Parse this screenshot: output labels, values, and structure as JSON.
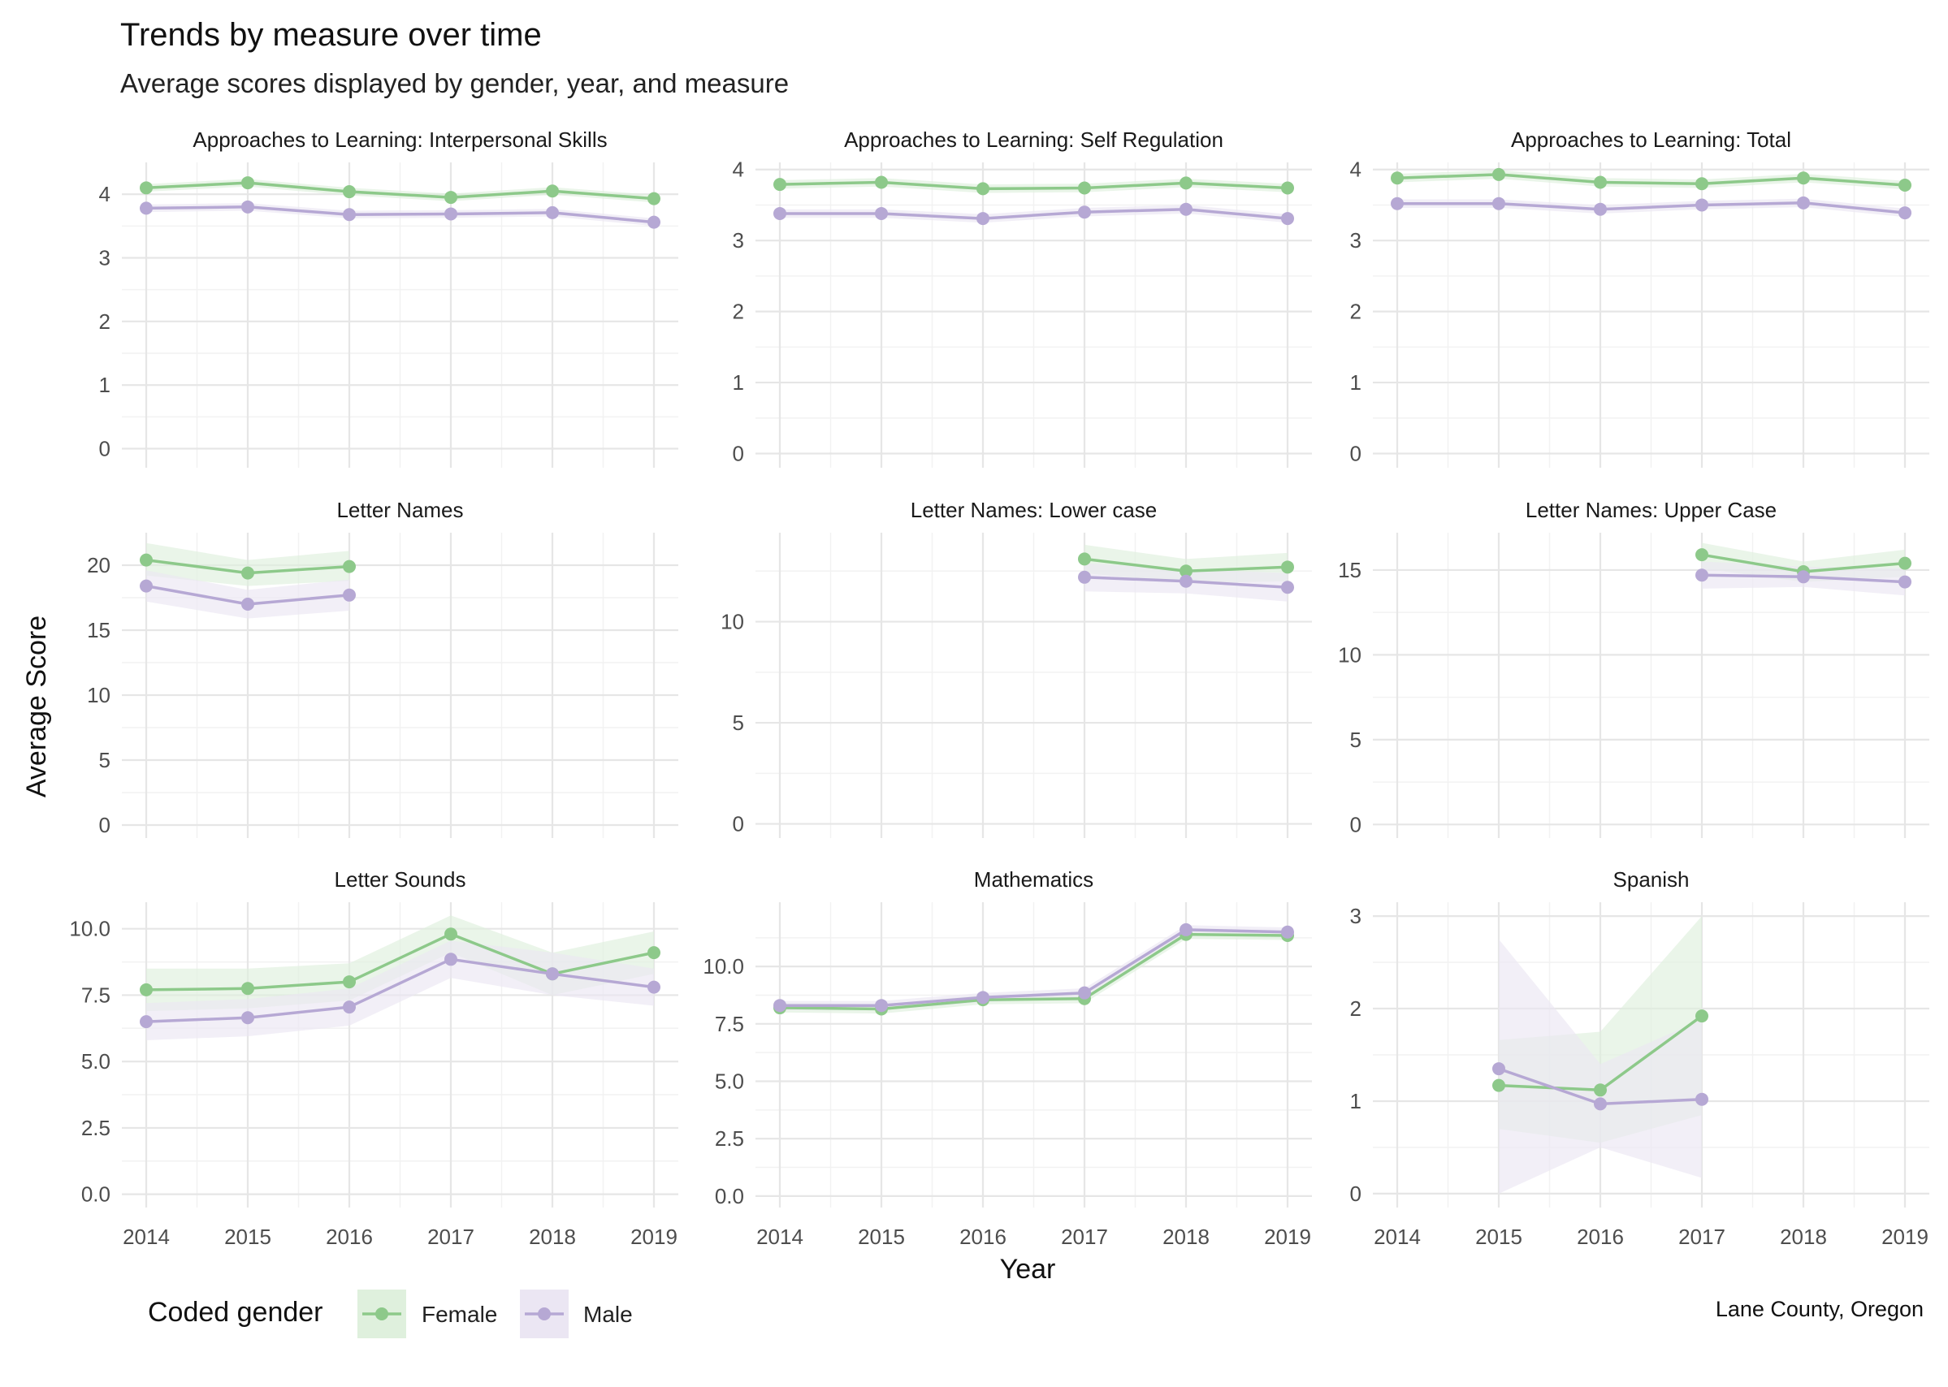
{
  "chart_data": {
    "type": "line",
    "title": "Trends by measure over time",
    "subtitle": "Average scores displayed by gender, year, and measure",
    "xlabel": "Year",
    "ylabel": "Average Score",
    "caption": "Lane County, Oregon",
    "grid": true,
    "x_ticks": [
      "2014",
      "2015",
      "2016",
      "2017",
      "2018",
      "2019"
    ],
    "xlim": [
      2014,
      2019
    ],
    "legend": {
      "title": "Coded gender",
      "position": "bottom-left",
      "entries": [
        {
          "name": "Female",
          "color": "#8dc98a",
          "fill": "#dff0dd"
        },
        {
          "name": "Male",
          "color": "#b6a8d4",
          "fill": "#ebe6f3"
        }
      ]
    },
    "panels": [
      {
        "title": "Approaches to Learning: Interpersonal Skills",
        "ylim": [
          -0.3,
          4.5
        ],
        "y_ticks": [
          0,
          1,
          2,
          3,
          4
        ],
        "y_tick_labels": [
          "0",
          "1",
          "2",
          "3",
          "4"
        ],
        "show_x_ticks": false,
        "series": [
          {
            "name": "Female",
            "x": [
              2014,
              2015,
              2016,
              2017,
              2018,
              2019
            ],
            "y": [
              4.1,
              4.18,
              4.04,
              3.95,
              4.05,
              3.93
            ],
            "lower": [
              4.04,
              4.12,
              3.98,
              3.89,
              3.99,
              3.87
            ],
            "upper": [
              4.16,
              4.24,
              4.1,
              4.01,
              4.11,
              3.99
            ]
          },
          {
            "name": "Male",
            "x": [
              2014,
              2015,
              2016,
              2017,
              2018,
              2019
            ],
            "y": [
              3.78,
              3.8,
              3.68,
              3.69,
              3.71,
              3.56
            ],
            "lower": [
              3.72,
              3.74,
              3.62,
              3.63,
              3.65,
              3.5
            ],
            "upper": [
              3.84,
              3.86,
              3.74,
              3.75,
              3.77,
              3.62
            ]
          }
        ]
      },
      {
        "title": "Approaches to Learning: Self Regulation",
        "ylim": [
          -0.2,
          4.1
        ],
        "y_ticks": [
          0,
          1,
          2,
          3,
          4
        ],
        "y_tick_labels": [
          "0",
          "1",
          "2",
          "3",
          "4"
        ],
        "show_x_ticks": false,
        "series": [
          {
            "name": "Female",
            "x": [
              2014,
              2015,
              2016,
              2017,
              2018,
              2019
            ],
            "y": [
              3.79,
              3.82,
              3.73,
              3.74,
              3.81,
              3.74
            ],
            "lower": [
              3.73,
              3.76,
              3.67,
              3.68,
              3.75,
              3.68
            ],
            "upper": [
              3.85,
              3.88,
              3.79,
              3.8,
              3.87,
              3.8
            ]
          },
          {
            "name": "Male",
            "x": [
              2014,
              2015,
              2016,
              2017,
              2018,
              2019
            ],
            "y": [
              3.38,
              3.38,
              3.31,
              3.4,
              3.44,
              3.31
            ],
            "lower": [
              3.32,
              3.32,
              3.25,
              3.34,
              3.38,
              3.25
            ],
            "upper": [
              3.44,
              3.44,
              3.37,
              3.46,
              3.5,
              3.37
            ]
          }
        ]
      },
      {
        "title": "Approaches to Learning: Total",
        "ylim": [
          -0.2,
          4.1
        ],
        "y_ticks": [
          0,
          1,
          2,
          3,
          4
        ],
        "y_tick_labels": [
          "0",
          "1",
          "2",
          "3",
          "4"
        ],
        "show_x_ticks": false,
        "series": [
          {
            "name": "Female",
            "x": [
              2014,
              2015,
              2016,
              2017,
              2018,
              2019
            ],
            "y": [
              3.88,
              3.93,
              3.82,
              3.8,
              3.88,
              3.78
            ],
            "lower": [
              3.82,
              3.87,
              3.76,
              3.74,
              3.82,
              3.72
            ],
            "upper": [
              3.94,
              3.99,
              3.88,
              3.86,
              3.94,
              3.84
            ]
          },
          {
            "name": "Male",
            "x": [
              2014,
              2015,
              2016,
              2017,
              2018,
              2019
            ],
            "y": [
              3.52,
              3.52,
              3.44,
              3.5,
              3.53,
              3.39
            ],
            "lower": [
              3.46,
              3.46,
              3.38,
              3.44,
              3.47,
              3.33
            ],
            "upper": [
              3.58,
              3.58,
              3.5,
              3.56,
              3.59,
              3.45
            ]
          }
        ]
      },
      {
        "title": "Letter Names",
        "ylim": [
          -1,
          22.5
        ],
        "y_ticks": [
          0,
          5,
          10,
          15,
          20
        ],
        "y_tick_labels": [
          "0",
          "5",
          "10",
          "15",
          "20"
        ],
        "show_x_ticks": false,
        "series": [
          {
            "name": "Female",
            "x": [
              2014,
              2015,
              2016
            ],
            "y": [
              20.4,
              19.4,
              19.9
            ],
            "lower": [
              19.2,
              18.4,
              18.8
            ],
            "upper": [
              21.7,
              20.4,
              21.1
            ]
          },
          {
            "name": "Male",
            "x": [
              2014,
              2015,
              2016
            ],
            "y": [
              18.4,
              17.0,
              17.7
            ],
            "lower": [
              17.2,
              15.9,
              16.5
            ],
            "upper": [
              19.6,
              18.1,
              18.9
            ]
          }
        ]
      },
      {
        "title": "Letter Names: Lower case",
        "ylim": [
          -0.7,
          14.4
        ],
        "y_ticks": [
          0,
          5,
          10
        ],
        "y_tick_labels": [
          "0",
          "5",
          "10"
        ],
        "show_x_ticks": false,
        "series": [
          {
            "name": "Female",
            "x": [
              2017,
              2018,
              2019
            ],
            "y": [
              13.1,
              12.5,
              12.7
            ],
            "lower": [
              12.4,
              11.9,
              12.0
            ],
            "upper": [
              13.8,
              13.1,
              13.4
            ]
          },
          {
            "name": "Male",
            "x": [
              2017,
              2018,
              2019
            ],
            "y": [
              12.2,
              12.0,
              11.7
            ],
            "lower": [
              11.5,
              11.4,
              11.0
            ],
            "upper": [
              12.9,
              12.6,
              12.4
            ]
          }
        ]
      },
      {
        "title": "Letter Names: Upper Case",
        "ylim": [
          -0.8,
          17.2
        ],
        "y_ticks": [
          0,
          5,
          10,
          15
        ],
        "y_tick_labels": [
          "0",
          "5",
          "10",
          "15"
        ],
        "show_x_ticks": false,
        "series": [
          {
            "name": "Female",
            "x": [
              2017,
              2018,
              2019
            ],
            "y": [
              15.9,
              14.9,
              15.4
            ],
            "lower": [
              15.1,
              14.3,
              14.6
            ],
            "upper": [
              16.6,
              15.5,
              16.2
            ]
          },
          {
            "name": "Male",
            "x": [
              2017,
              2018,
              2019
            ],
            "y": [
              14.7,
              14.6,
              14.3
            ],
            "lower": [
              13.9,
              14.0,
              13.5
            ],
            "upper": [
              15.5,
              15.2,
              15.1
            ]
          }
        ]
      },
      {
        "title": "Letter Sounds",
        "ylim": [
          -0.5,
          11.0
        ],
        "y_ticks": [
          0,
          2.5,
          5,
          7.5,
          10
        ],
        "y_tick_labels": [
          "0.0",
          "2.5",
          "5.0",
          "7.5",
          "10.0"
        ],
        "show_x_ticks": true,
        "series": [
          {
            "name": "Female",
            "x": [
              2014,
              2015,
              2016,
              2017,
              2018,
              2019
            ],
            "y": [
              7.7,
              7.75,
              8.0,
              9.8,
              8.3,
              9.1
            ],
            "lower": [
              6.9,
              7.0,
              7.3,
              9.1,
              7.5,
              8.3
            ],
            "upper": [
              8.5,
              8.5,
              8.7,
              10.5,
              9.1,
              9.9
            ]
          },
          {
            "name": "Male",
            "x": [
              2014,
              2015,
              2016,
              2017,
              2018,
              2019
            ],
            "y": [
              6.5,
              6.65,
              7.05,
              8.85,
              8.3,
              7.8
            ],
            "lower": [
              5.8,
              5.95,
              6.35,
              8.15,
              7.5,
              7.1
            ],
            "upper": [
              7.2,
              7.35,
              7.75,
              9.55,
              9.1,
              8.5
            ]
          }
        ]
      },
      {
        "title": "Mathematics",
        "ylim": [
          -0.5,
          12.8
        ],
        "y_ticks": [
          0,
          2.5,
          5,
          7.5,
          10
        ],
        "y_tick_labels": [
          "0.0",
          "2.5",
          "5.0",
          "7.5",
          "10.0"
        ],
        "show_x_ticks": true,
        "series": [
          {
            "name": "Female",
            "x": [
              2014,
              2015,
              2016,
              2017,
              2018,
              2019
            ],
            "y": [
              8.2,
              8.15,
              8.55,
              8.6,
              11.4,
              11.35
            ],
            "lower": [
              8.0,
              7.95,
              8.35,
              8.4,
              11.2,
              11.15
            ],
            "upper": [
              8.4,
              8.35,
              8.75,
              8.8,
              11.6,
              11.55
            ]
          },
          {
            "name": "Male",
            "x": [
              2014,
              2015,
              2016,
              2017,
              2018,
              2019
            ],
            "y": [
              8.3,
              8.3,
              8.65,
              8.85,
              11.6,
              11.5
            ],
            "lower": [
              8.1,
              8.1,
              8.45,
              8.65,
              11.4,
              11.3
            ],
            "upper": [
              8.5,
              8.5,
              8.85,
              9.05,
              11.8,
              11.7
            ]
          }
        ]
      },
      {
        "title": "Spanish",
        "ylim": [
          -0.15,
          3.15
        ],
        "y_ticks": [
          0,
          1,
          2,
          3
        ],
        "y_tick_labels": [
          "0",
          "1",
          "2",
          "3"
        ],
        "show_x_ticks": true,
        "series": [
          {
            "name": "Female",
            "x": [
              2015,
              2016,
              2017
            ],
            "y": [
              1.17,
              1.12,
              1.92
            ],
            "lower": [
              0.7,
              0.55,
              0.85
            ],
            "upper": [
              1.66,
              1.75,
              3.0
            ]
          },
          {
            "name": "Male",
            "x": [
              2015,
              2016,
              2017
            ],
            "y": [
              1.35,
              0.97,
              1.02
            ],
            "lower": [
              0.0,
              0.5,
              0.17
            ],
            "upper": [
              2.75,
              1.4,
              1.88
            ]
          }
        ]
      }
    ]
  }
}
